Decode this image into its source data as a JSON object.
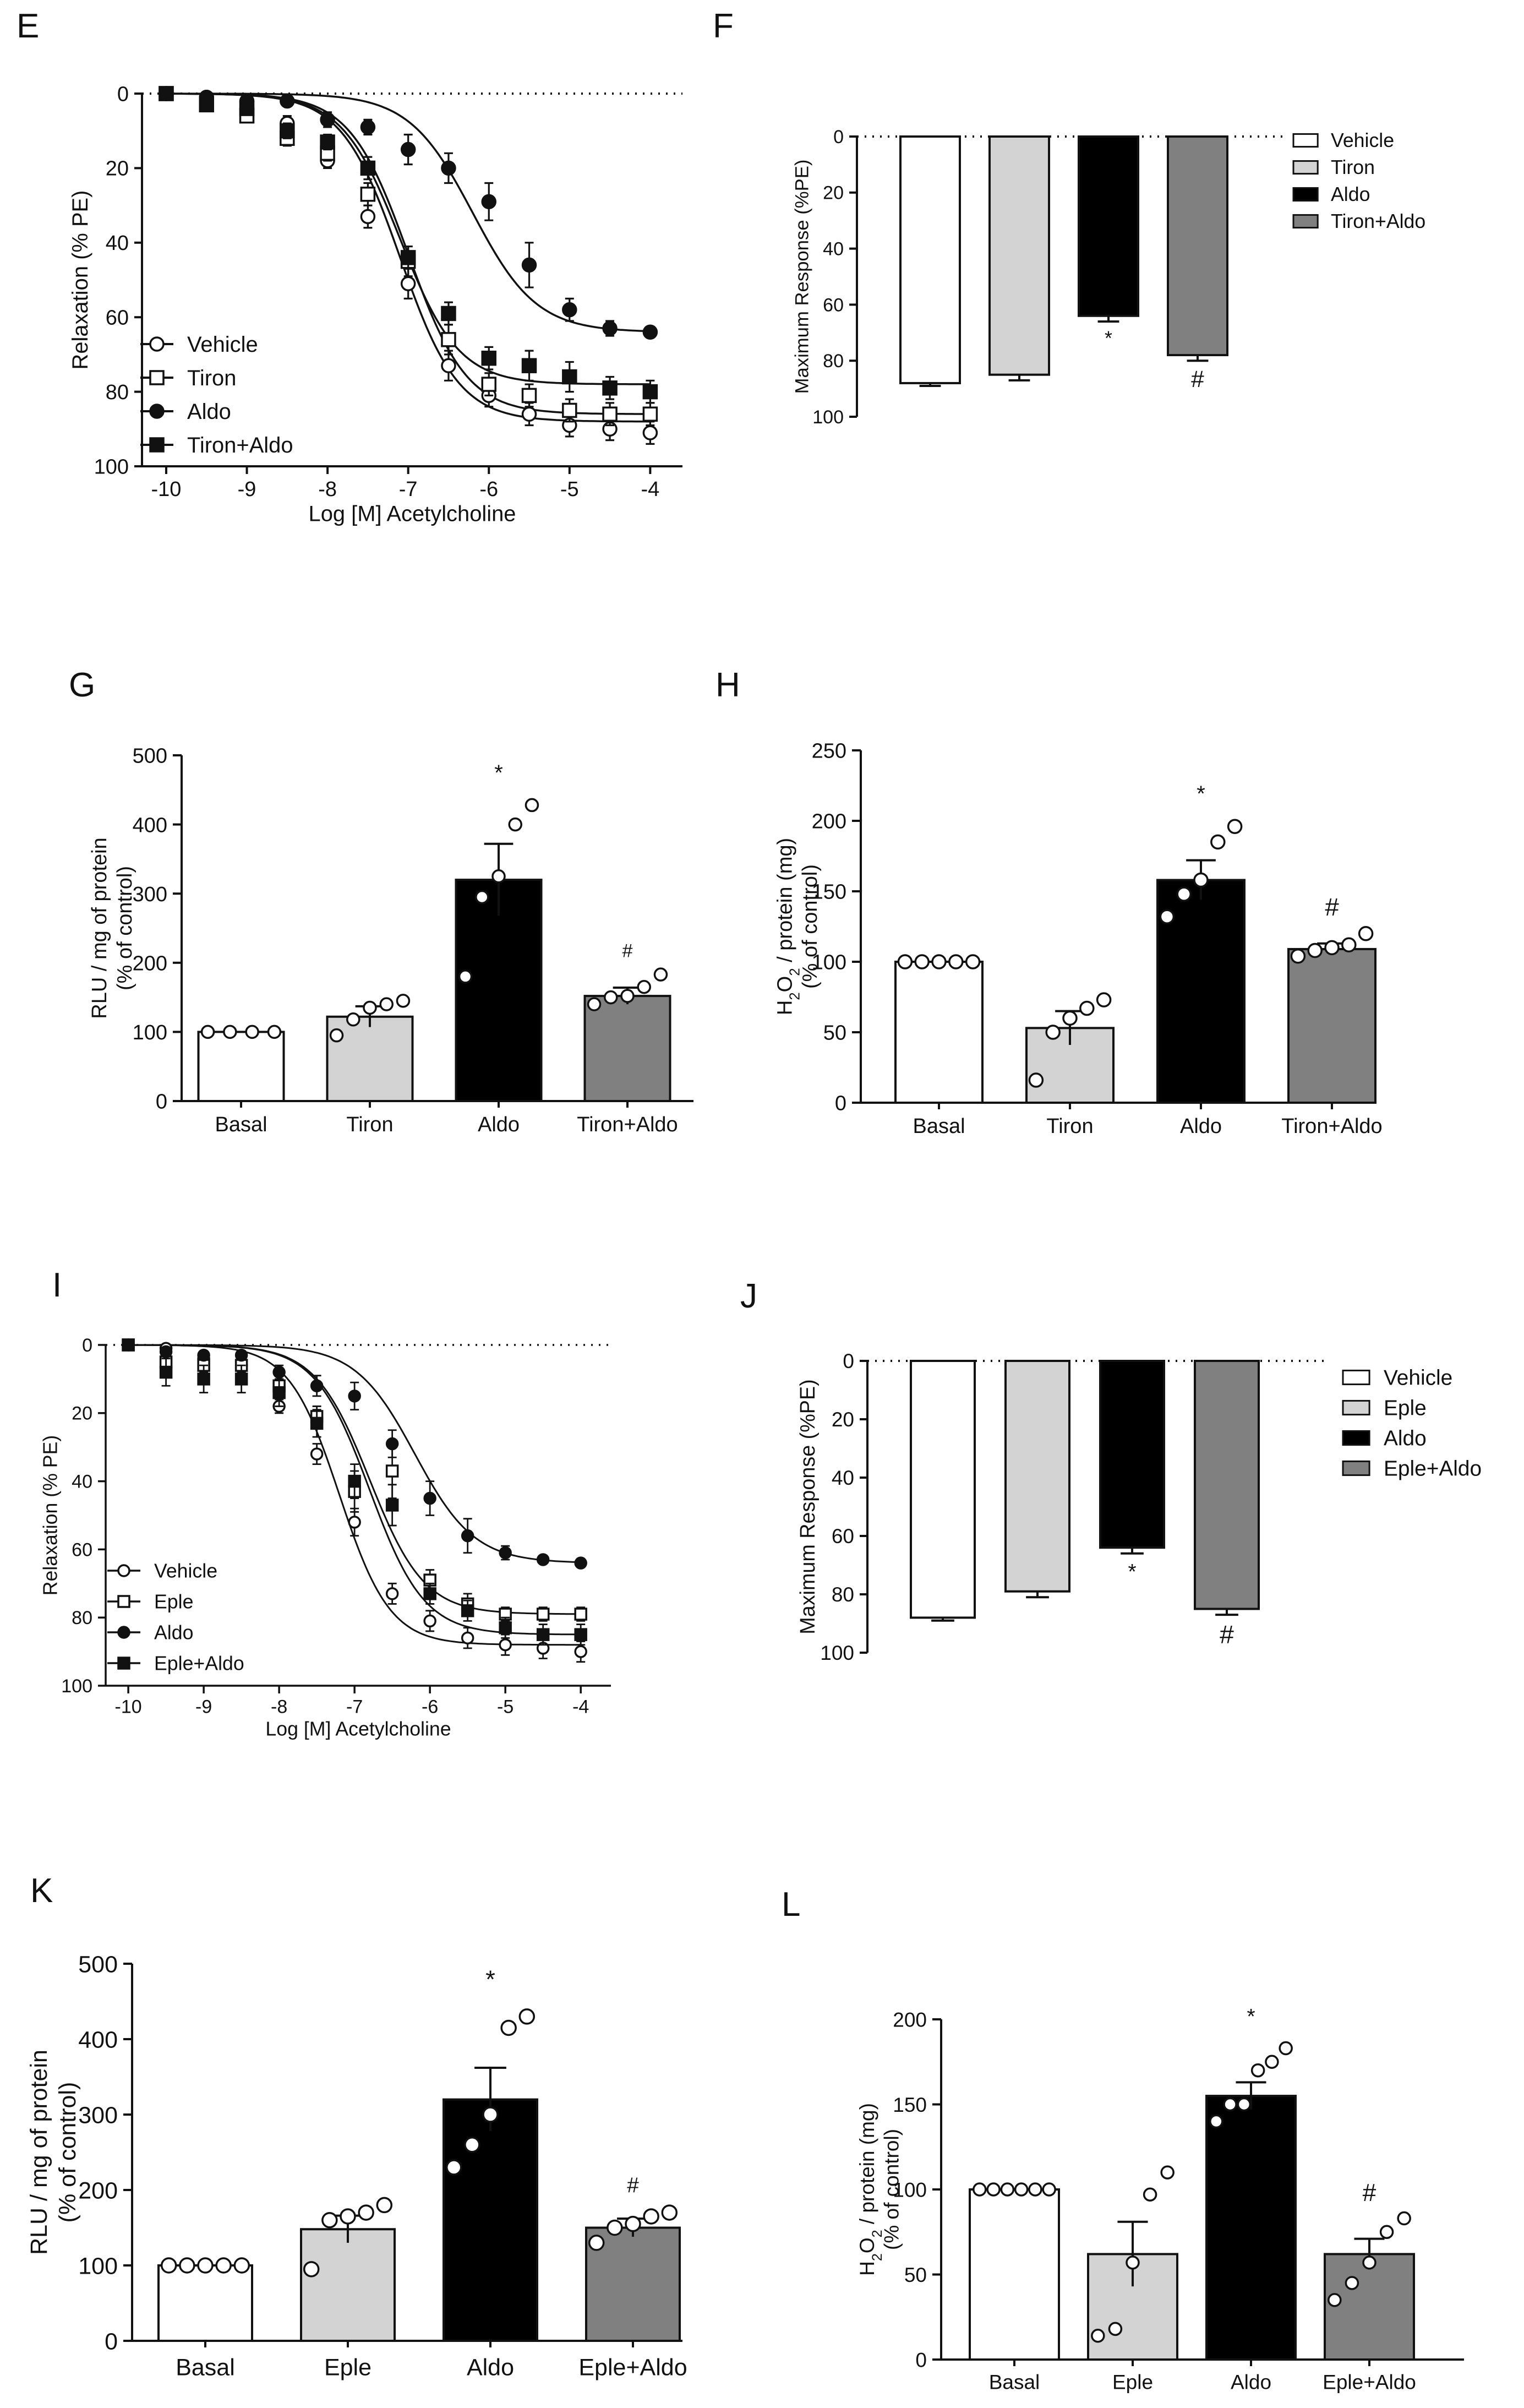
{
  "colors": {
    "vehicle": "#ffffff",
    "drug": "#d3d3d3",
    "aldo": "#000000",
    "combo": "#808080",
    "ink": "#111111"
  },
  "chart_data": [
    {
      "panel": "E",
      "type": "line",
      "xlabel": "Log [M] Acetylcholine",
      "ylabel": "Relaxation (% PE)",
      "xlim": [
        -10.3,
        -3.6
      ],
      "ylim": [
        0,
        100
      ],
      "y_inverted": true,
      "xticks": [
        "-10",
        "-9",
        "-8",
        "-7",
        "-6",
        "-5",
        "-4"
      ],
      "yticks": [
        "0",
        "20",
        "40",
        "60",
        "80",
        "100"
      ],
      "x": [
        -10,
        -9.5,
        -9,
        -8.5,
        -8,
        -7.5,
        -7,
        -6.5,
        -6,
        -5.5,
        -5,
        -4.5,
        -4
      ],
      "series": [
        {
          "name": "Vehicle",
          "marker": "open-circle",
          "emax": 88,
          "logEC50": -7.1,
          "hill": 1.2,
          "values": [
            0,
            1,
            4,
            8,
            18,
            33,
            51,
            73,
            81,
            86,
            89,
            90,
            91
          ],
          "err": [
            0,
            1,
            1,
            2,
            2,
            3,
            4,
            4,
            3,
            3,
            3,
            3,
            3
          ]
        },
        {
          "name": "Tiron",
          "marker": "open-square",
          "emax": 86,
          "logEC50": -7.0,
          "hill": 1.2,
          "values": [
            0,
            3,
            6,
            12,
            16,
            27,
            45,
            66,
            78,
            81,
            85,
            86,
            86
          ],
          "err": [
            0,
            1,
            1,
            2,
            2,
            3,
            4,
            4,
            3,
            3,
            3,
            3,
            3
          ]
        },
        {
          "name": "Aldo",
          "marker": "filled-circle",
          "emax": 64,
          "logEC50": -6.2,
          "hill": 1.1,
          "values": [
            0,
            1,
            2,
            2,
            7,
            9,
            15,
            20,
            29,
            46,
            58,
            63,
            64
          ],
          "err": [
            0,
            1,
            1,
            1,
            2,
            2,
            4,
            4,
            5,
            6,
            3,
            2,
            1
          ]
        },
        {
          "name": "Tiron+Aldo",
          "marker": "filled-square",
          "emax": 78,
          "logEC50": -7.1,
          "hill": 1.2,
          "values": [
            0,
            3,
            4,
            10,
            13,
            20,
            44,
            59,
            71,
            73,
            76,
            79,
            80
          ],
          "err": [
            0,
            1,
            1,
            2,
            2,
            3,
            3,
            3,
            3,
            4,
            4,
            3,
            3
          ]
        }
      ],
      "legend": [
        "Vehicle",
        "Tiron",
        "Aldo",
        "Tiron+Aldo"
      ]
    },
    {
      "panel": "F",
      "type": "bar",
      "y_inverted": true,
      "ylabel": "Maximum Response (%PE)",
      "ylim": [
        0,
        100
      ],
      "yticks": [
        "0",
        "20",
        "40",
        "60",
        "80",
        "100"
      ],
      "categories": [
        "Vehicle",
        "Tiron",
        "Aldo",
        "Tiron+Aldo"
      ],
      "values": [
        88,
        85,
        64,
        78
      ],
      "err": [
        1,
        2,
        2,
        2
      ],
      "annotations": [
        "",
        "",
        "*",
        "#"
      ],
      "legend": [
        "Vehicle",
        "Tiron",
        "Aldo",
        "Tiron+Aldo"
      ]
    },
    {
      "panel": "G",
      "type": "bar",
      "ylabel_lines": [
        "RLU / mg of protein",
        "(% of control)"
      ],
      "ylim": [
        0,
        500
      ],
      "yticks": [
        "0",
        "100",
        "200",
        "300",
        "400",
        "500"
      ],
      "categories": [
        "Basal",
        "Tiron",
        "Aldo",
        "Tiron+Aldo"
      ],
      "values": [
        100,
        122,
        320,
        152
      ],
      "err": [
        0,
        15,
        52,
        12
      ],
      "annotations": [
        "",
        "",
        "*",
        "#"
      ],
      "points": [
        [
          100,
          100,
          100,
          100
        ],
        [
          95,
          118,
          135,
          140,
          145
        ],
        [
          180,
          295,
          325,
          400,
          428
        ],
        [
          140,
          150,
          152,
          165,
          183
        ]
      ]
    },
    {
      "panel": "H",
      "type": "bar",
      "ylabel_lines": [
        "H2O2 / protein (mg)",
        "(% of control)"
      ],
      "ylim": [
        0,
        250
      ],
      "yticks": [
        "0",
        "50",
        "100",
        "150",
        "200",
        "250"
      ],
      "categories": [
        "Basal",
        "Tiron",
        "Aldo",
        "Tiron+Aldo"
      ],
      "values": [
        100,
        53,
        158,
        109
      ],
      "err": [
        0,
        12,
        14,
        4
      ],
      "annotations": [
        "",
        "",
        "*",
        "#"
      ],
      "points": [
        [
          100,
          100,
          100,
          100,
          100
        ],
        [
          16,
          50,
          60,
          67,
          73
        ],
        [
          132,
          148,
          158,
          185,
          196
        ],
        [
          104,
          108,
          110,
          112,
          120
        ]
      ]
    },
    {
      "panel": "I",
      "type": "line",
      "xlabel": "Log [M] Acetylcholine",
      "ylabel": "Relaxation (% PE)",
      "xlim": [
        -10.3,
        -3.6
      ],
      "ylim": [
        0,
        100
      ],
      "y_inverted": true,
      "xticks": [
        "-10",
        "-9",
        "-8",
        "-7",
        "-6",
        "-5",
        "-4"
      ],
      "yticks": [
        "0",
        "20",
        "40",
        "60",
        "80",
        "100"
      ],
      "x": [
        -10,
        -9.5,
        -9,
        -8.5,
        -8,
        -7.5,
        -7,
        -6.5,
        -6,
        -5.5,
        -5,
        -4.5,
        -4
      ],
      "series": [
        {
          "name": "Vehicle",
          "marker": "open-circle",
          "emax": 88,
          "logEC50": -7.2,
          "hill": 1.3,
          "values": [
            0,
            1,
            4,
            6,
            18,
            32,
            52,
            73,
            81,
            86,
            88,
            89,
            90
          ],
          "err": [
            0,
            1,
            2,
            2,
            2,
            3,
            4,
            3,
            3,
            3,
            3,
            3,
            3
          ]
        },
        {
          "name": "Eple",
          "marker": "open-square",
          "emax": 79,
          "logEC50": -6.8,
          "hill": 1.2,
          "values": [
            0,
            5,
            6,
            6,
            12,
            21,
            43,
            37,
            69,
            76,
            79,
            79,
            79
          ],
          "err": [
            0,
            2,
            2,
            2,
            2,
            3,
            6,
            8,
            3,
            3,
            2,
            2,
            2
          ]
        },
        {
          "name": "Aldo",
          "marker": "filled-circle",
          "emax": 64,
          "logEC50": -6.2,
          "hill": 1.1,
          "values": [
            0,
            2,
            3,
            3,
            8,
            12,
            15,
            29,
            45,
            56,
            61,
            63,
            64
          ],
          "err": [
            0,
            1,
            1,
            1,
            2,
            3,
            4,
            4,
            5,
            5,
            2,
            1,
            1
          ]
        },
        {
          "name": "Eple+Aldo",
          "marker": "filled-square",
          "emax": 85,
          "logEC50": -6.8,
          "hill": 1.2,
          "values": [
            0,
            8,
            10,
            10,
            14,
            23,
            40,
            47,
            73,
            78,
            83,
            85,
            85
          ],
          "err": [
            0,
            4,
            4,
            4,
            4,
            4,
            5,
            6,
            3,
            3,
            3,
            3,
            3
          ]
        }
      ],
      "legend": [
        "Vehicle",
        "Eple",
        "Aldo",
        "Eple+Aldo"
      ]
    },
    {
      "panel": "J",
      "type": "bar",
      "y_inverted": true,
      "ylabel": "Maximum Response (%PE)",
      "ylim": [
        0,
        100
      ],
      "yticks": [
        "0",
        "20",
        "40",
        "60",
        "80",
        "100"
      ],
      "categories": [
        "Vehicle",
        "Eple",
        "Aldo",
        "Eple+Aldo"
      ],
      "values": [
        88,
        79,
        64,
        85
      ],
      "err": [
        1,
        2,
        2,
        2
      ],
      "annotations": [
        "",
        "",
        "*",
        "#"
      ],
      "legend": [
        "Vehicle",
        "Eple",
        "Aldo",
        "Eple+Aldo"
      ]
    },
    {
      "panel": "K",
      "type": "bar",
      "ylabel_lines": [
        "RLU / mg of protein",
        "(% of control)"
      ],
      "ylim": [
        0,
        500
      ],
      "yticks": [
        "0",
        "100",
        "200",
        "300",
        "400",
        "500"
      ],
      "categories": [
        "Basal",
        "Eple",
        "Aldo",
        "Eple+Aldo"
      ],
      "values": [
        100,
        148,
        320,
        150
      ],
      "err": [
        0,
        18,
        42,
        12
      ],
      "annotations": [
        "",
        "",
        "*",
        "#"
      ],
      "points": [
        [
          100,
          100,
          100,
          100,
          100
        ],
        [
          95,
          160,
          165,
          170,
          180
        ],
        [
          230,
          260,
          300,
          415,
          430
        ],
        [
          130,
          150,
          155,
          165,
          170
        ]
      ]
    },
    {
      "panel": "L",
      "type": "bar",
      "ylabel_lines": [
        "H2O2 / protein (mg)",
        "(% of control)"
      ],
      "ylim": [
        0,
        200
      ],
      "yticks": [
        "0",
        "50",
        "100",
        "150",
        "200"
      ],
      "categories": [
        "Basal",
        "Eple",
        "Aldo",
        "Eple+Aldo"
      ],
      "values": [
        100,
        62,
        155,
        62
      ],
      "err": [
        0,
        19,
        8,
        9
      ],
      "annotations": [
        "",
        "",
        "*",
        "#"
      ],
      "points": [
        [
          100,
          100,
          100,
          100,
          100,
          100
        ],
        [
          14,
          18,
          57,
          97,
          110
        ],
        [
          140,
          150,
          150,
          170,
          175,
          183
        ],
        [
          35,
          45,
          57,
          75,
          83
        ]
      ]
    }
  ]
}
